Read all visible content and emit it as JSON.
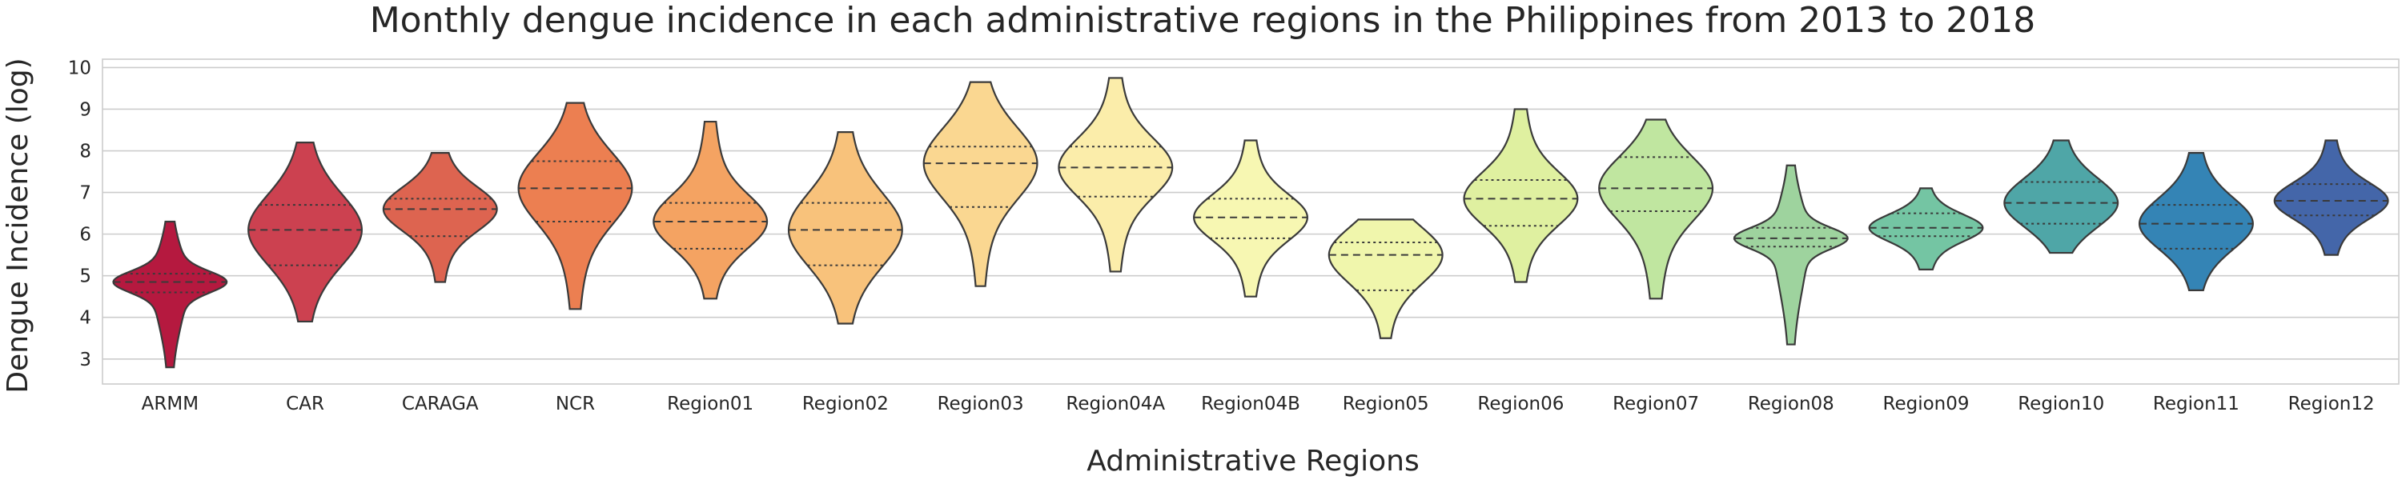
{
  "chart_data": {
    "type": "violin",
    "title": "Monthly dengue incidence in each administrative regions in the Philippines from 2013 to 2018",
    "xlabel": "Administrative Regions",
    "ylabel": "Dengue Incidence (log)",
    "ylim": [
      2.4,
      10.2
    ],
    "yticks": [
      3,
      4,
      5,
      6,
      7,
      8,
      9,
      10
    ],
    "grid": true,
    "inner": "quartile",
    "categories": [
      "ARMM",
      "CAR",
      "CARAGA",
      "NCR",
      "Region01",
      "Region02",
      "Region03",
      "Region04A",
      "Region04B",
      "Region05",
      "Region06",
      "Region07",
      "Region08",
      "Region09",
      "Region10",
      "Region11",
      "Region12"
    ],
    "colors": [
      "#b5193f",
      "#cc4150",
      "#dd6450",
      "#ec7f51",
      "#f4a362",
      "#f8c27b",
      "#fad791",
      "#fbedaa",
      "#f7f7b2",
      "#f0f6ac",
      "#dff0a0",
      "#c0e6a0",
      "#9ed39e",
      "#74c5a3",
      "#4fa6a7",
      "#3484b5",
      "#4466a9"
    ],
    "regions": [
      {
        "name": "ARMM",
        "min": 2.8,
        "max": 6.3,
        "q1": 4.6,
        "median": 4.85,
        "q3": 5.05
      },
      {
        "name": "CAR",
        "min": 3.9,
        "max": 8.2,
        "q1": 5.25,
        "median": 6.1,
        "q3": 6.7
      },
      {
        "name": "CARAGA",
        "min": 4.85,
        "max": 7.95,
        "q1": 5.95,
        "median": 6.6,
        "q3": 6.85
      },
      {
        "name": "NCR",
        "min": 4.2,
        "max": 9.15,
        "q1": 6.3,
        "median": 7.1,
        "q3": 7.75
      },
      {
        "name": "Region01",
        "min": 4.45,
        "max": 8.7,
        "q1": 5.65,
        "median": 6.3,
        "q3": 6.75
      },
      {
        "name": "Region02",
        "min": 3.85,
        "max": 8.45,
        "q1": 5.25,
        "median": 6.1,
        "q3": 6.75
      },
      {
        "name": "Region03",
        "min": 4.75,
        "max": 9.65,
        "q1": 6.65,
        "median": 7.7,
        "q3": 8.1
      },
      {
        "name": "Region04A",
        "min": 5.1,
        "max": 9.75,
        "q1": 6.9,
        "median": 7.6,
        "q3": 8.1
      },
      {
        "name": "Region04B",
        "min": 4.5,
        "max": 8.25,
        "q1": 5.9,
        "median": 6.4,
        "q3": 6.85
      },
      {
        "name": "Region05",
        "min": 3.5,
        "max": 6.35,
        "q1": 4.65,
        "median": 5.5,
        "q3": 5.8
      },
      {
        "name": "Region06",
        "min": 4.85,
        "max": 9.0,
        "q1": 6.2,
        "median": 6.85,
        "q3": 7.3
      },
      {
        "name": "Region07",
        "min": 4.45,
        "max": 8.75,
        "q1": 6.55,
        "median": 7.1,
        "q3": 7.85
      },
      {
        "name": "Region08",
        "min": 3.35,
        "max": 7.65,
        "q1": 5.7,
        "median": 5.9,
        "q3": 6.15
      },
      {
        "name": "Region09",
        "min": 5.15,
        "max": 7.1,
        "q1": 5.95,
        "median": 6.15,
        "q3": 6.5
      },
      {
        "name": "Region10",
        "min": 5.55,
        "max": 8.25,
        "q1": 6.25,
        "median": 6.75,
        "q3": 7.25
      },
      {
        "name": "Region11",
        "min": 4.65,
        "max": 7.95,
        "q1": 5.65,
        "median": 6.25,
        "q3": 6.7
      },
      {
        "name": "Region12",
        "min": 5.5,
        "max": 8.25,
        "q1": 6.45,
        "median": 6.8,
        "q3": 7.2
      }
    ]
  }
}
